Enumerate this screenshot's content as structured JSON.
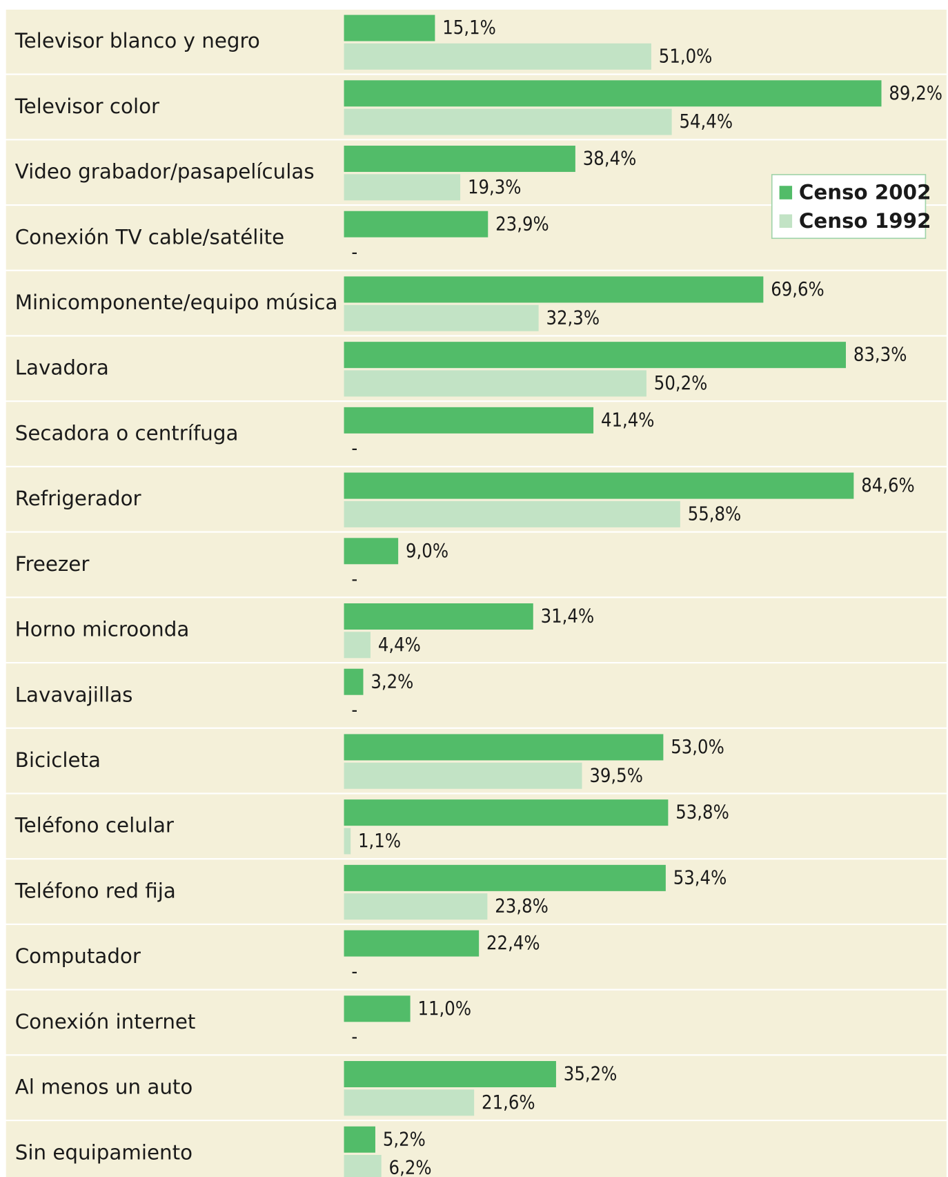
{
  "chart_data": {
    "type": "bar",
    "orientation": "horizontal",
    "categories": [
      "Televisor blanco y negro",
      "Televisor color",
      "Video grabador/pasapelículas",
      "Conexión TV cable/satélite",
      "Minicomponente/equipo música",
      "Lavadora",
      "Secadora o centrífuga",
      "Refrigerador",
      "Freezer",
      "Horno microonda",
      "Lavavajillas",
      "Bicicleta",
      "Teléfono celular",
      "Teléfono red fija",
      "Computador",
      "Conexión internet",
      "Al menos un auto",
      "Sin equipamiento"
    ],
    "series": [
      {
        "name": "Censo 2002",
        "color": "#52bc69",
        "values": [
          15.1,
          89.2,
          38.4,
          23.9,
          69.6,
          83.3,
          41.4,
          84.6,
          9.0,
          31.4,
          3.2,
          53.0,
          53.8,
          53.4,
          22.4,
          11.0,
          35.2,
          5.2
        ],
        "value_labels": [
          "15,1%",
          "89,2%",
          "38,4%",
          "23,9%",
          "69,6%",
          "83,3%",
          "41,4%",
          "84,6%",
          "9,0%",
          "31,4%",
          "3,2%",
          "53,0%",
          "53,8%",
          "53,4%",
          "22,4%",
          "11,0%",
          "35,2%",
          "5,2%"
        ]
      },
      {
        "name": "Censo 1992",
        "color": "#c2e3c5",
        "values": [
          51.0,
          54.4,
          19.3,
          null,
          32.3,
          50.2,
          null,
          55.8,
          null,
          4.4,
          null,
          39.5,
          1.1,
          23.8,
          null,
          null,
          21.6,
          6.2
        ],
        "value_labels": [
          "51,0%",
          "54,4%",
          "19,3%",
          "-",
          "32,3%",
          "50,2%",
          "-",
          "55,8%",
          "-",
          "4,4%",
          "-",
          "39,5%",
          "1,1%",
          "23,8%",
          "-",
          "-",
          "21,6%",
          "6,2%"
        ]
      }
    ],
    "legend": "right"
  }
}
